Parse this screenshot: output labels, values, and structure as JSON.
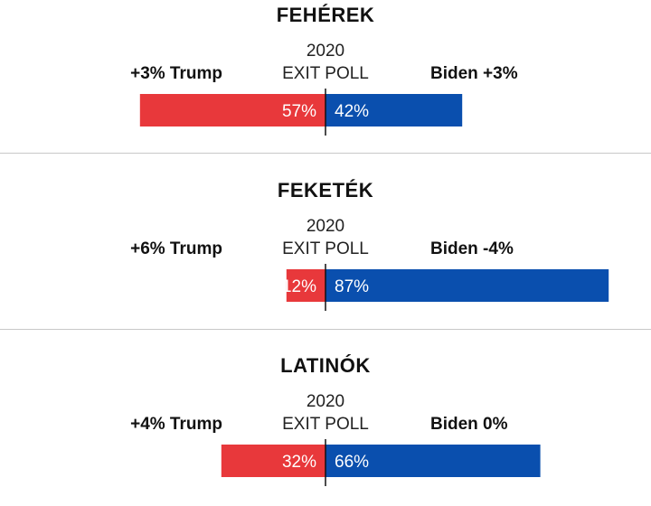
{
  "colors": {
    "trump": "#e8383b",
    "biden": "#0a4fae",
    "axis": "#111111"
  },
  "chart_data": {
    "type": "bar",
    "orientation": "diverging-horizontal",
    "xlim": [
      0,
      100
    ],
    "panels": [
      {
        "title": "FEHÉREK",
        "year_label": "2020",
        "poll_label": "EXIT POLL",
        "left_shift_label": "+3% Trump",
        "right_shift_label": "Biden +3%",
        "series": [
          {
            "name": "Trump",
            "value": 57,
            "label": "57%"
          },
          {
            "name": "Biden",
            "value": 42,
            "label": "42%"
          }
        ]
      },
      {
        "title": "FEKETÉK",
        "year_label": "2020",
        "poll_label": "EXIT POLL",
        "left_shift_label": "+6% Trump",
        "right_shift_label": "Biden -4%",
        "series": [
          {
            "name": "Trump",
            "value": 12,
            "label": "12%"
          },
          {
            "name": "Biden",
            "value": 87,
            "label": "87%"
          }
        ]
      },
      {
        "title": "LATINÓK",
        "year_label": "2020",
        "poll_label": "EXIT POLL",
        "left_shift_label": "+4% Trump",
        "right_shift_label": "Biden 0%",
        "series": [
          {
            "name": "Trump",
            "value": 32,
            "label": "32%"
          },
          {
            "name": "Biden",
            "value": 66,
            "label": "66%"
          }
        ]
      }
    ]
  }
}
